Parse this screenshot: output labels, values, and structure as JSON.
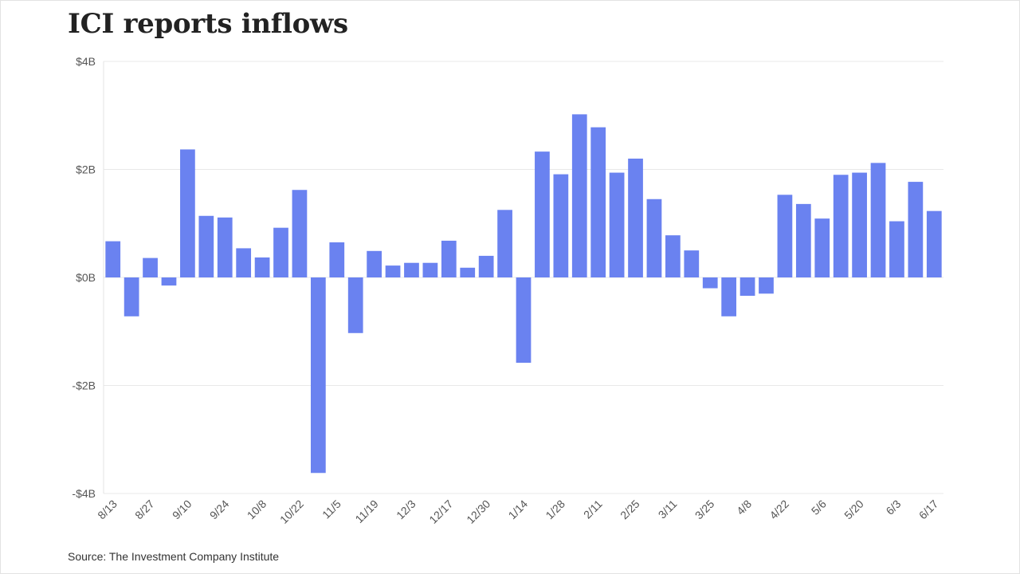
{
  "title": "ICI reports inflows",
  "source": "Source: The Investment Company Institute",
  "colors": {
    "bar": "#6a82f0",
    "grid": "#e8e8e8",
    "axis_text": "#555555"
  },
  "chart_data": {
    "type": "bar",
    "title": "ICI reports inflows",
    "xlabel": "",
    "ylabel": "",
    "ylim": [
      -4,
      4
    ],
    "y_ticks": [
      {
        "value": 4,
        "label": "$4B"
      },
      {
        "value": 2,
        "label": "$2B"
      },
      {
        "value": 0,
        "label": "$0B"
      },
      {
        "value": -2,
        "label": "-$2B"
      },
      {
        "value": -4,
        "label": "-$4B"
      }
    ],
    "grid": true,
    "categories": [
      "8/13",
      "8/20",
      "8/27",
      "9/3",
      "9/10",
      "9/17",
      "9/24",
      "10/1",
      "10/8",
      "10/15",
      "10/22",
      "10/29",
      "11/5",
      "11/12",
      "11/19",
      "11/26",
      "12/3",
      "12/10",
      "12/17",
      "12/24",
      "12/30",
      "1/7",
      "1/14",
      "1/21",
      "1/28",
      "2/4",
      "2/11",
      "2/18",
      "2/25",
      "3/4",
      "3/11",
      "3/18",
      "3/25",
      "4/1",
      "4/8",
      "4/15",
      "4/22",
      "4/29",
      "5/6",
      "5/13",
      "5/20",
      "5/27",
      "6/3",
      "6/10",
      "6/17"
    ],
    "x_tick_labels": [
      "8/13",
      "8/27",
      "9/10",
      "9/24",
      "10/8",
      "10/22",
      "11/5",
      "11/19",
      "12/3",
      "12/17",
      "12/30",
      "1/14",
      "1/28",
      "2/11",
      "2/25",
      "3/11",
      "3/25",
      "4/8",
      "4/22",
      "5/6",
      "5/20",
      "6/3",
      "6/17"
    ],
    "values": [
      0.67,
      -0.72,
      0.36,
      -0.15,
      2.37,
      1.14,
      1.11,
      0.54,
      0.37,
      0.92,
      1.62,
      -3.62,
      0.65,
      -1.03,
      0.49,
      0.22,
      0.27,
      0.27,
      0.68,
      0.18,
      0.4,
      1.25,
      -1.58,
      2.33,
      1.91,
      3.02,
      2.78,
      1.94,
      2.2,
      1.45,
      0.78,
      0.5,
      -0.2,
      -0.72,
      -0.34,
      -0.3,
      1.53,
      1.36,
      1.09,
      1.9,
      1.94,
      2.12,
      1.04,
      1.77,
      1.23
    ]
  }
}
